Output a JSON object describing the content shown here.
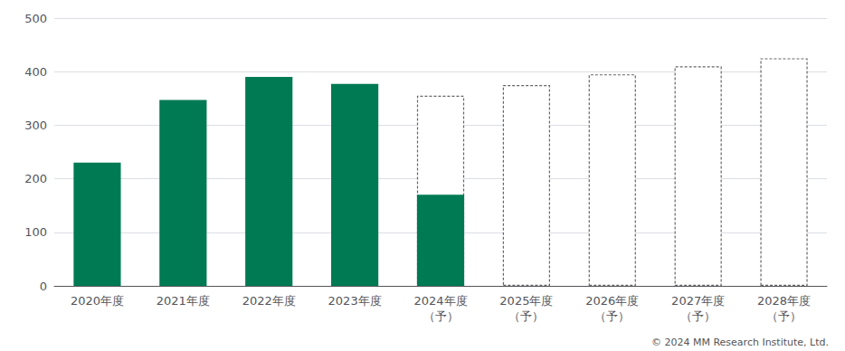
{
  "chart_data": {
    "type": "bar",
    "categories": [
      "2020年度",
      "2021年度",
      "2022年度",
      "2023年度",
      "2024年度\n（予）",
      "2025年度\n（予）",
      "2026年度\n（予）",
      "2027年度\n（予）",
      "2028年度\n（予）"
    ],
    "series": [
      {
        "color": "#666666",
        "line_style": "dashed",
        "values": [
          0,
          0,
          0,
          0,
          355,
          375,
          395,
          410,
          425
        ]
      },
      {
        "color": "#007A53",
        "line_style": "solid",
        "values": [
          230,
          347,
          390,
          377,
          170,
          0,
          0,
          0,
          0
        ]
      }
    ],
    "ylim": [
      0,
      500
    ],
    "yticks": [
      0,
      100,
      200,
      300,
      400,
      500
    ],
    "grid": true,
    "annotations": [
      "© 2024 MM Research Institute, Ltd."
    ]
  }
}
